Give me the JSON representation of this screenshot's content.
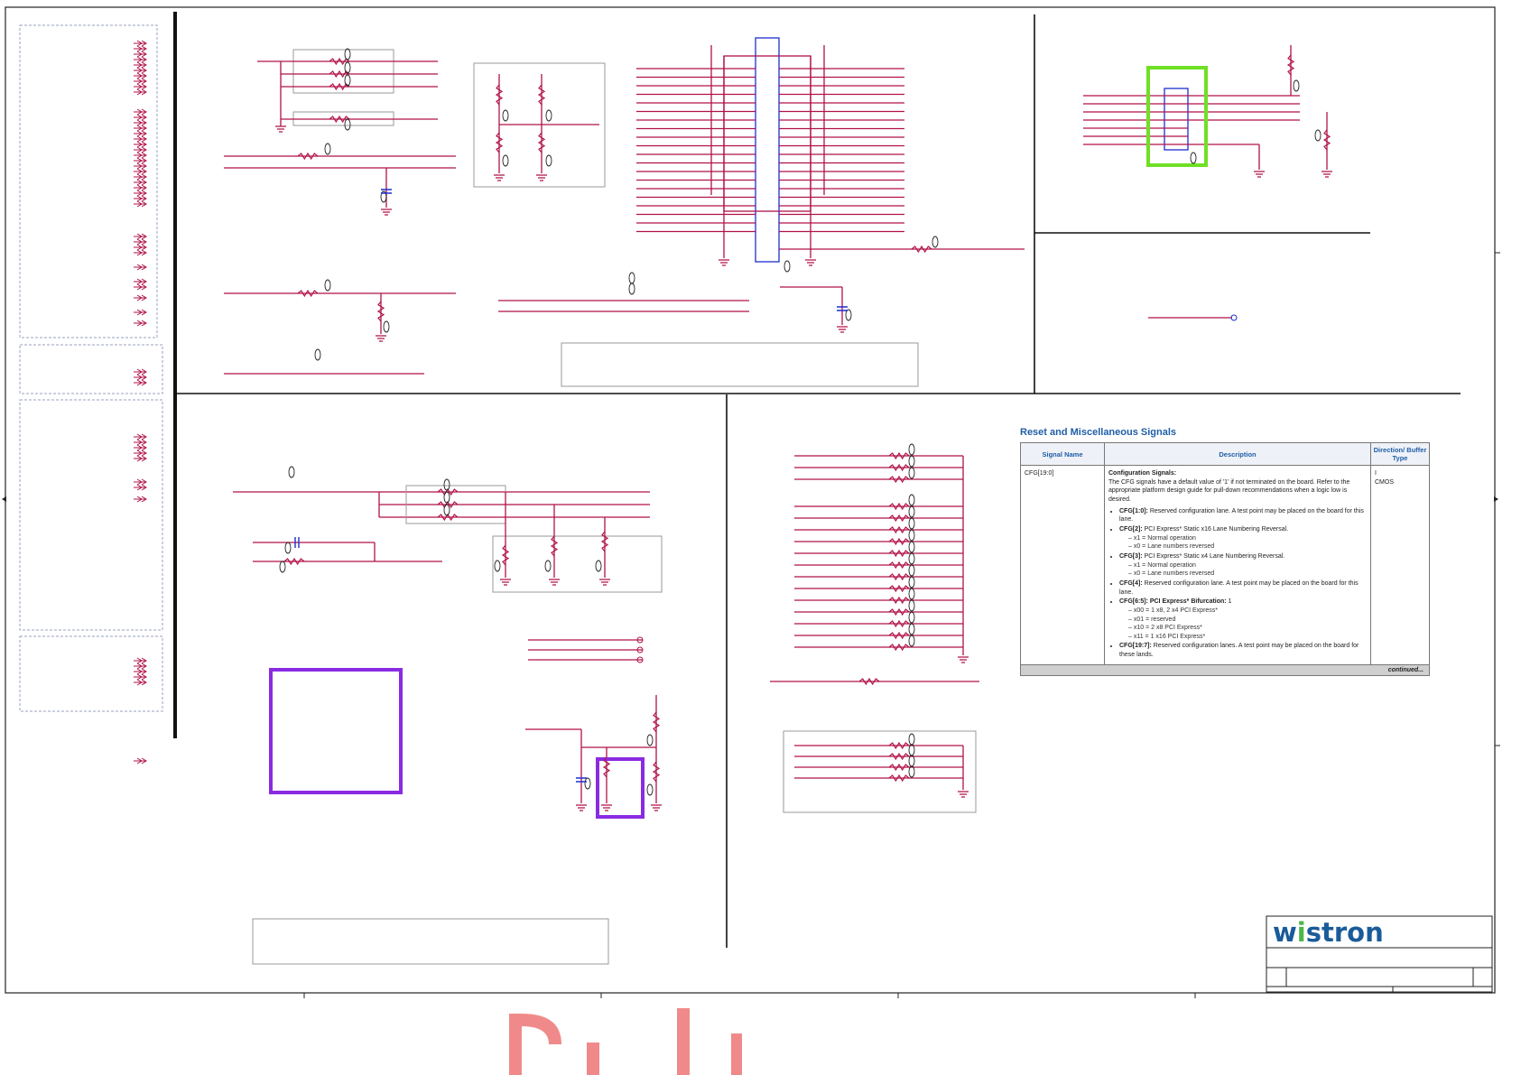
{
  "table": {
    "title": "Reset and Miscellaneous Signals",
    "headers": [
      "Signal Name",
      "Description",
      "Direction/ Buffer Type"
    ],
    "signal_name": "CFG[19:0]",
    "direction": "I",
    "buffer_type": "CMOS",
    "description_heading": "Configuration Signals:",
    "description_intro": "The CFG signals have a default value of '1' if not terminated on the board. Refer to the appropriate platform design guide for pull-down recommendations when a logic low is desired.",
    "bullets": [
      {
        "key": "CFG[1:0]:",
        "text": " Reserved configuration lane. A test point may be placed on the board for this lane.",
        "subs": []
      },
      {
        "key": "CFG[2]:",
        "text": " PCI Express* Static x16 Lane Numbering Reversal.",
        "subs": [
          "x1 = Normal operation",
          "x0 = Lane numbers reversed"
        ]
      },
      {
        "key": "CFG[3]:",
        "text": " PCI Express* Static x4 Lane Numbering Reversal.",
        "subs": [
          "x1 = Normal operation",
          "x0 = Lane numbers reversed"
        ]
      },
      {
        "key": "CFG[4]:",
        "text": " Reserved configuration lane. A test point may be placed on the board for this lane.",
        "subs": []
      },
      {
        "key": "CFG[6:5]: PCI Express* Bifurcation:",
        "text": " 1",
        "subs": [
          "x00 = 1 x8, 2 x4 PCI Express*",
          "x01 = reserved",
          "x10 = 2 x8 PCI Express*",
          "x11 = 1 x16 PCI Express*"
        ]
      },
      {
        "key": "CFG[19:7]:",
        "text": " Reserved configuration lanes. A test point may be placed on the board for these lands.",
        "subs": []
      }
    ],
    "continued": "continued..."
  },
  "title_block": {
    "logo_text_a": "w",
    "logo_text_dot": "i",
    "logo_text_b": "stron"
  },
  "colors": {
    "wire": "#b0124a",
    "bus": "#1d2fd0",
    "highlight_green": "#6fe024",
    "highlight_purple": "#8a2be2",
    "table_header": "#1f5ea8",
    "watermark": "#f08a8a"
  }
}
